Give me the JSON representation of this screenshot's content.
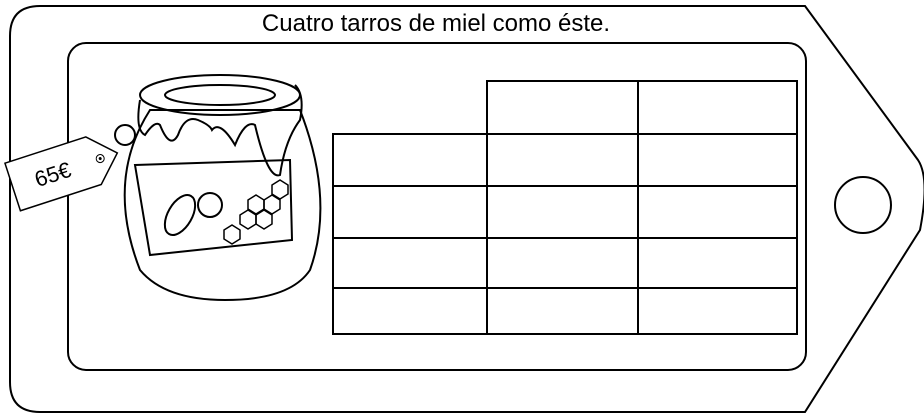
{
  "header": {
    "title": "Cuatro tarros de miel como éste."
  },
  "price_tag": {
    "label": "65€"
  }
}
